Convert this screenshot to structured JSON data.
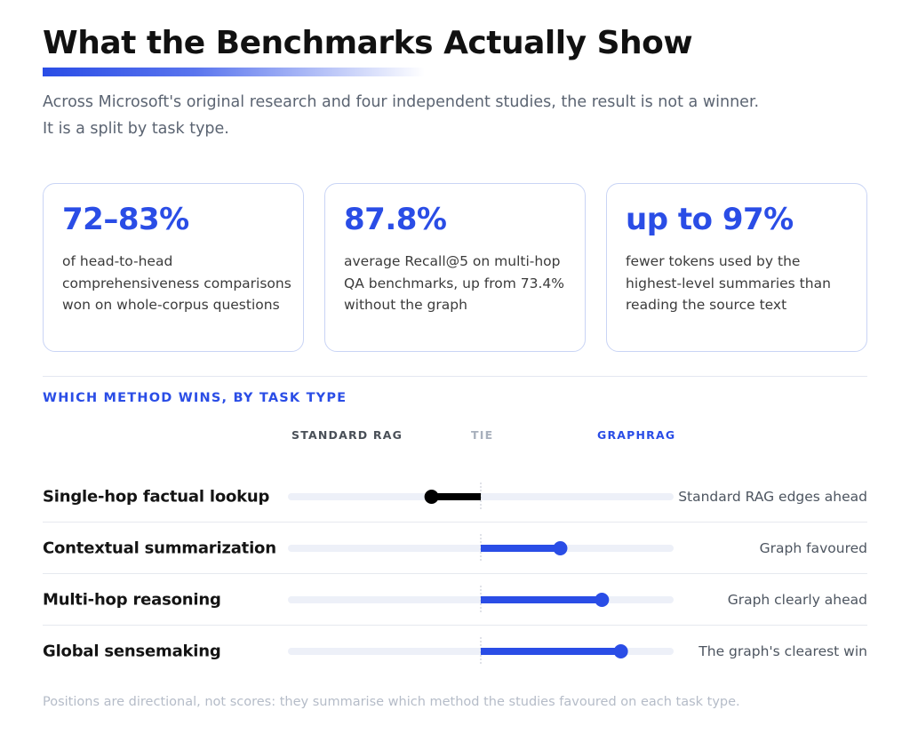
{
  "header": {
    "title": "What the Benchmarks Actually Show",
    "subtitle": "Across Microsoft's original research and four independent studies, the result is not a winner. It is a split by task type."
  },
  "stats": [
    {
      "value": "72–83%",
      "description": "of head-to-head comprehensiveness comparisons won on whole-corpus questions"
    },
    {
      "value": "87.8%",
      "description": "average Recall@5 on multi-hop QA benchmarks, up from 73.4% without the graph"
    },
    {
      "value": "up to 97%",
      "description": "fewer tokens used by the highest-level summaries than reading the source text"
    }
  ],
  "section_label": "WHICH METHOD WINS, BY TASK TYPE",
  "chart_data": {
    "type": "bar",
    "scale_labels": {
      "left": "STANDARD RAG",
      "center": "TIE",
      "right": "GRAPHRAG"
    },
    "xlim": [
      -1,
      1
    ],
    "categories": [
      "Single-hop factual lookup",
      "Contextual summarization",
      "Multi-hop reasoning",
      "Global sensemaking"
    ],
    "values": [
      -0.26,
      0.42,
      0.64,
      0.74
    ],
    "verdicts": [
      "Standard RAG edges ahead",
      "Graph favoured",
      "Graph clearly ahead",
      "The graph's clearest win"
    ],
    "colors": {
      "standard": "#000000",
      "graph": "#2a4de6",
      "track": "#edf0f8",
      "tie_line": "#c0c6d2"
    }
  },
  "footnote": "Positions are directional, not scores: they summarise which method the studies favoured on each task type."
}
